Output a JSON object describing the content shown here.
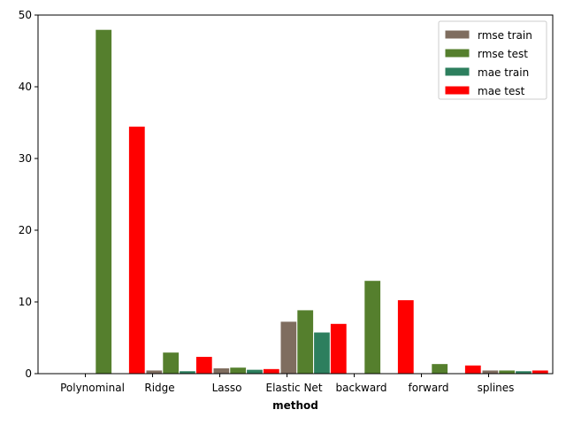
{
  "chart_data": {
    "type": "bar",
    "title": "",
    "xlabel": "method",
    "ylabel": "",
    "categories": [
      "Polynominal",
      "Ridge",
      "Lasso",
      "Elastic Net",
      "backward",
      "forward",
      "splines"
    ],
    "series": [
      {
        "name": "rmse train",
        "color": "#7f6d5f",
        "values": [
          0.0,
          0.5,
          0.8,
          7.3,
          0.0,
          0.1,
          0.5
        ]
      },
      {
        "name": "rmse test",
        "color": "#557f2d",
        "values": [
          48.0,
          3.0,
          0.9,
          8.9,
          13.0,
          1.4,
          0.5
        ]
      },
      {
        "name": "mae train",
        "color": "#2d7f5e",
        "values": [
          0.0,
          0.4,
          0.6,
          5.8,
          0.0,
          0.1,
          0.4
        ]
      },
      {
        "name": "mae test",
        "color": "#ff0000",
        "values": [
          34.5,
          2.4,
          0.7,
          7.0,
          10.3,
          1.2,
          0.5
        ]
      }
    ],
    "ylim": [
      0,
      50
    ],
    "yticks": [
      0,
      10,
      20,
      30,
      40,
      50
    ],
    "grid": false,
    "legend_position": "upper-right"
  }
}
